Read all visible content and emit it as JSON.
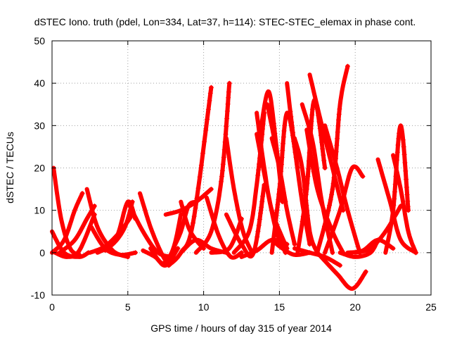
{
  "chart_data": {
    "type": "scatter",
    "title": "dSTEC Iono. truth (pdel, Lon=334, Lat=37, h=114): STEC-STEC_elemax in phase cont.",
    "xlabel": "GPS time / hours of day 315 of year 2014",
    "ylabel": "dSTEC  / TECUs",
    "xlim": [
      0,
      25
    ],
    "ylim": [
      -10,
      50
    ],
    "x_ticks": [
      "0",
      "5",
      "10",
      "15",
      "20",
      "25"
    ],
    "y_ticks": [
      "-10",
      "0",
      "10",
      "20",
      "30",
      "40",
      "50"
    ],
    "grid": true,
    "marker": "plus",
    "color": "#ff0000",
    "arcs": [
      {
        "x": [
          0.0,
          0.8,
          1.8,
          2.4
        ],
        "y": [
          5,
          0,
          -1,
          0
        ]
      },
      {
        "x": [
          0.1,
          0.6,
          1.2,
          1.8
        ],
        "y": [
          20,
          8,
          1,
          -0.5
        ]
      },
      {
        "x": [
          0.0,
          0.8,
          1.5,
          2.0
        ],
        "y": [
          0,
          3,
          10,
          14
        ]
      },
      {
        "x": [
          0.2,
          1.0,
          1.8,
          2.8
        ],
        "y": [
          0,
          -1,
          0.5,
          9
        ]
      },
      {
        "x": [
          0.5,
          1.5,
          2.3,
          2.8
        ],
        "y": [
          0,
          3,
          8,
          11
        ]
      },
      {
        "x": [
          2.3,
          3.0,
          4.0,
          5.0
        ],
        "y": [
          15,
          6,
          0.5,
          -1
        ]
      },
      {
        "x": [
          2.5,
          3.5,
          4.5,
          5.3
        ],
        "y": [
          0,
          1.5,
          5,
          9
        ]
      },
      {
        "x": [
          2.6,
          3.5,
          4.5,
          5.5
        ],
        "y": [
          6,
          1,
          -0.5,
          0
        ]
      },
      {
        "x": [
          3.0,
          4.0,
          4.8,
          5.3
        ],
        "y": [
          0,
          2,
          6,
          12
        ]
      },
      {
        "x": [
          3.5,
          4.3,
          5.0,
          5.5
        ],
        "y": [
          0.5,
          4,
          12,
          8
        ]
      },
      {
        "x": [
          5.0,
          6.0,
          7.0,
          8.0
        ],
        "y": [
          12,
          5,
          0,
          -1
        ]
      },
      {
        "x": [
          5.8,
          6.5,
          7.2,
          7.7
        ],
        "y": [
          14,
          6,
          0,
          -3
        ]
      },
      {
        "x": [
          6.0,
          6.8,
          7.5,
          8.3
        ],
        "y": [
          0.5,
          -1,
          -3,
          1
        ]
      },
      {
        "x": [
          6.5,
          7.3,
          8.0,
          8.5
        ],
        "y": [
          1,
          -2.5,
          1,
          9
        ]
      },
      {
        "x": [
          7.5,
          8.5,
          9.5,
          10.5
        ],
        "y": [
          9,
          10,
          12,
          15
        ]
      },
      {
        "x": [
          8.5,
          9.0,
          9.5,
          10.0
        ],
        "y": [
          12,
          6,
          3,
          1
        ]
      },
      {
        "x": [
          7.7,
          8.5,
          9.3,
          10.5
        ],
        "y": [
          -3,
          0,
          7,
          39
        ]
      },
      {
        "x": [
          8.5,
          9.5,
          10.5,
          11.5
        ],
        "y": [
          0,
          3,
          1,
          0
        ]
      },
      {
        "x": [
          9.5,
          10.5,
          11.2,
          11.7
        ],
        "y": [
          0,
          5,
          18,
          40
        ]
      },
      {
        "x": [
          10.2,
          11.0,
          11.8,
          12.5
        ],
        "y": [
          13,
          4,
          -1,
          0
        ]
      },
      {
        "x": [
          10.5,
          11.5,
          12.0,
          12.5
        ],
        "y": [
          0,
          0.5,
          3,
          8
        ]
      },
      {
        "x": [
          11.5,
          12.0,
          12.6,
          13.2
        ],
        "y": [
          27,
          15,
          5,
          0
        ]
      },
      {
        "x": [
          11.5,
          12.5,
          13.3,
          14.0
        ],
        "y": [
          9,
          2,
          0,
          16
        ]
      },
      {
        "x": [
          12.0,
          13.0,
          13.5,
          14.0
        ],
        "y": [
          0,
          5,
          16,
          33
        ]
      },
      {
        "x": [
          12.5,
          13.5,
          14.5,
          15.5
        ],
        "y": [
          -1,
          0.5,
          3,
          2
        ]
      },
      {
        "x": [
          13.5,
          14.0,
          14.5,
          15.5
        ],
        "y": [
          33,
          20,
          10,
          1
        ]
      },
      {
        "x": [
          13.5,
          14.2,
          14.8,
          15.4
        ],
        "y": [
          28,
          15,
          5,
          0
        ]
      },
      {
        "x": [
          13.8,
          14.3,
          14.8,
          15.2
        ],
        "y": [
          30,
          38,
          25,
          12
        ]
      },
      {
        "x": [
          14.2,
          14.6,
          15.0,
          15.4
        ],
        "y": [
          35,
          28,
          20,
          12
        ]
      },
      {
        "x": [
          14.5,
          15.0,
          15.5,
          16.0
        ],
        "y": [
          27,
          20,
          10,
          2
        ]
      },
      {
        "x": [
          14.5,
          15.0,
          15.5,
          16.2
        ],
        "y": [
          0,
          15,
          33,
          20
        ]
      },
      {
        "x": [
          15.5,
          16.0,
          16.5,
          17.0
        ],
        "y": [
          40,
          25,
          12,
          2
        ]
      },
      {
        "x": [
          16.0,
          16.5,
          17.0,
          17.5
        ],
        "y": [
          27,
          20,
          5,
          0
        ]
      },
      {
        "x": [
          16.2,
          16.8,
          17.3,
          18.0
        ],
        "y": [
          0,
          15,
          36,
          20
        ]
      },
      {
        "x": [
          16.5,
          17.2,
          17.8,
          18.5
        ],
        "y": [
          35,
          26,
          12,
          0
        ]
      },
      {
        "x": [
          16.8,
          17.5,
          18.5,
          19.2
        ],
        "y": [
          29,
          15,
          5,
          0
        ]
      },
      {
        "x": [
          17.0,
          17.8,
          18.5,
          19.2
        ],
        "y": [
          42,
          30,
          20,
          10
        ]
      },
      {
        "x": [
          17.5,
          18.5,
          19.0,
          19.5
        ],
        "y": [
          0,
          15,
          35,
          44
        ]
      },
      {
        "x": [
          18.0,
          18.8,
          19.5,
          20.3
        ],
        "y": [
          30,
          20,
          10,
          0
        ]
      },
      {
        "x": [
          18.0,
          19.0,
          19.8,
          20.5
        ],
        "y": [
          0,
          10,
          20,
          18
        ]
      },
      {
        "x": [
          17.5,
          18.8,
          19.8,
          20.7
        ],
        "y": [
          0,
          -5,
          -8.5,
          -4.5
        ]
      },
      {
        "x": [
          16.0,
          17.0,
          18.0,
          19.0
        ],
        "y": [
          1,
          0,
          -1,
          -3
        ]
      },
      {
        "x": [
          19.0,
          20.0,
          21.0,
          21.5
        ],
        "y": [
          0,
          -1,
          0,
          3
        ]
      },
      {
        "x": [
          20.0,
          21.0,
          22.0,
          23.0
        ],
        "y": [
          0,
          1,
          5,
          11
        ]
      },
      {
        "x": [
          21.5,
          22.3,
          23.0,
          24.0
        ],
        "y": [
          22,
          12,
          3,
          0
        ]
      },
      {
        "x": [
          22.0,
          22.5,
          23.0,
          23.5
        ],
        "y": [
          0,
          10,
          30,
          10
        ]
      },
      {
        "x": [
          22.5,
          23.0,
          23.5,
          24.0
        ],
        "y": [
          23,
          15,
          5,
          0
        ]
      },
      {
        "x": [
          19.5,
          20.5,
          21.5,
          22.5
        ],
        "y": [
          0,
          0.5,
          3,
          1
        ]
      },
      {
        "x": [
          8.0,
          8.5,
          9.0,
          9.5
        ],
        "y": [
          1,
          5,
          11,
          12
        ]
      },
      {
        "x": [
          14.5,
          15.2,
          16.0,
          17.0
        ],
        "y": [
          3,
          1,
          -0.5,
          0
        ]
      }
    ]
  }
}
